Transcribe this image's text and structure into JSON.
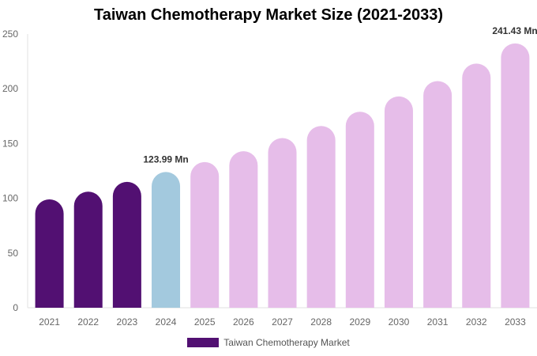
{
  "chart_data": {
    "type": "bar",
    "title": "Taiwan Chemotherapy Market Size (2021-2033)",
    "categories": [
      "2021",
      "2022",
      "2023",
      "2024",
      "2025",
      "2026",
      "2027",
      "2028",
      "2029",
      "2030",
      "2031",
      "2032",
      "2033"
    ],
    "series": [
      {
        "name": "Taiwan Chemotherapy Market",
        "values": [
          99,
          106,
          115,
          123.99,
          133,
          143,
          155,
          166,
          179,
          193,
          207,
          223,
          241.43
        ]
      }
    ],
    "data_labels": [
      {
        "category": "2024",
        "text": "123.99 Mn"
      },
      {
        "category": "2033",
        "text": "241.43 Mn"
      }
    ],
    "ylim": [
      0,
      250
    ],
    "yticks": [
      0,
      50,
      100,
      150,
      200,
      250
    ],
    "grid": false,
    "legend_position": "bottom",
    "colors": {
      "historical": "#521072",
      "current": "#a3c9de",
      "forecast": "#e6bde9"
    }
  }
}
